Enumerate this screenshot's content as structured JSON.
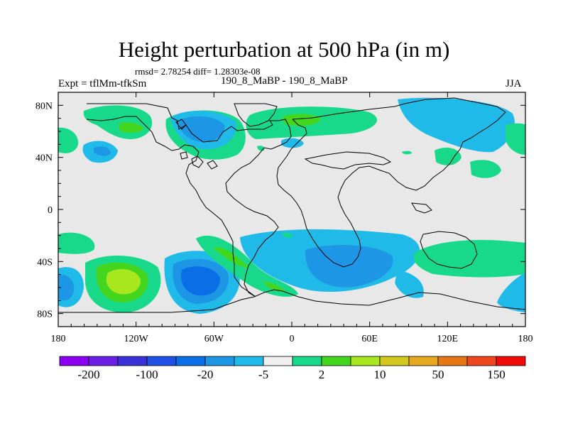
{
  "header": {
    "title": "Height perturbation at 500 hPa (in m)",
    "stats": "rmsd= 2.78254 diff= 1.28303e-08",
    "experiment": "Expt = tflMm-tfkSm",
    "case": "190_8_MaBP - 190_8_MaBP",
    "season": "JJA"
  },
  "chart_data": {
    "type": "heatmap",
    "title": "Height perturbation at 500 hPa (in m)",
    "xlabel": "",
    "ylabel": "",
    "xlim": [
      -180,
      180
    ],
    "ylim": [
      -90,
      90
    ],
    "x_ticks": [
      {
        "value": -180,
        "label": "180"
      },
      {
        "value": -120,
        "label": "120W"
      },
      {
        "value": -60,
        "label": "60W"
      },
      {
        "value": 0,
        "label": "0"
      },
      {
        "value": 60,
        "label": "60E"
      },
      {
        "value": 120,
        "label": "120E"
      },
      {
        "value": 180,
        "label": "180"
      }
    ],
    "y_ticks": [
      {
        "value": 80,
        "label": "80N"
      },
      {
        "value": 40,
        "label": "40N"
      },
      {
        "value": 0,
        "label": "0"
      },
      {
        "value": -40,
        "label": "40S"
      },
      {
        "value": -80,
        "label": "80S"
      }
    ],
    "colorbar": {
      "colors": [
        "#8a00f0",
        "#6a1ee8",
        "#3a32d8",
        "#1e50e6",
        "#0a6ee6",
        "#1e96e6",
        "#20bae8",
        "#f0f0f0",
        "#18d98a",
        "#44d61e",
        "#a8e61e",
        "#d2c81e",
        "#e6a81e",
        "#e67814",
        "#f0461e",
        "#f00a0a"
      ],
      "labels": [
        {
          "after_box": 1,
          "text": "-200"
        },
        {
          "after_box": 3,
          "text": "-100"
        },
        {
          "after_box": 5,
          "text": "-20"
        },
        {
          "after_box": 7,
          "text": "-5"
        },
        {
          "after_box": 9,
          "text": "2"
        },
        {
          "after_box": 11,
          "text": "10"
        },
        {
          "after_box": 13,
          "text": "50"
        },
        {
          "after_box": 15,
          "text": "150"
        }
      ]
    },
    "anomalies": [
      {
        "lon": -125,
        "lat": -57,
        "rlon": 26,
        "rlat": 21,
        "level": 3
      },
      {
        "lon": -65,
        "lat": -57,
        "rlon": 24,
        "rlat": 22,
        "level": -3
      },
      {
        "lon": 35,
        "lat": -48,
        "rlon": 48,
        "rlat": 17,
        "level": -2
      },
      {
        "lon": -25,
        "lat": -52,
        "rlon": 12,
        "rlat": 12,
        "level": 2
      },
      {
        "lon": -20,
        "lat": 65,
        "rlon": 30,
        "rlat": 12,
        "level": 1
      },
      {
        "lon": -68,
        "lat": 67,
        "rlon": 24,
        "rlat": 17,
        "level": -2
      },
      {
        "lon": 130,
        "lat": 67,
        "rlon": 42,
        "rlat": 17,
        "level": -1
      }
    ]
  }
}
